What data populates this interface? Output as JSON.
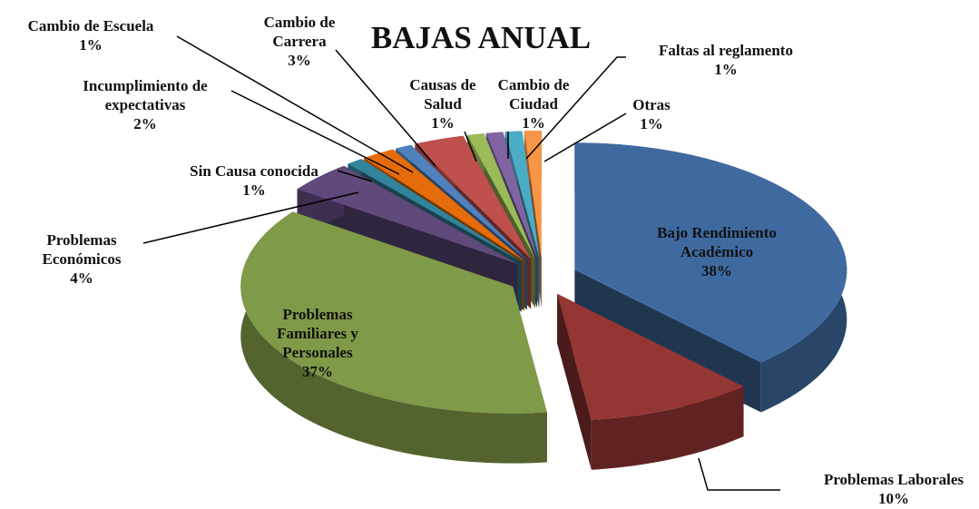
{
  "chart_data": {
    "type": "pie",
    "title": "BAJAS ANUAL",
    "categories": [
      "Bajo Rendimiento Académico",
      "Problemas Laborales",
      "Problemas Familiares y Personales",
      "Problemas Económicos",
      "Sin Causa conocida",
      "Incumplimiento de expectativas",
      "Cambio de Escuela",
      "Cambio de Carrera",
      "Causas de Salud",
      "Cambio de Ciudad",
      "Faltas al reglamento",
      "Otras"
    ],
    "values": [
      38,
      10,
      37,
      4,
      1,
      2,
      1,
      3,
      1,
      1,
      1,
      1
    ],
    "value_labels": [
      "38%",
      "10%",
      "37%",
      "4%",
      "1%",
      "2%",
      "1%",
      "3%",
      "1%",
      "1%",
      "1%",
      "1%"
    ],
    "colors": [
      "#3f6aa0",
      "#943634",
      "#7f9a48",
      "#60497b",
      "#31849b",
      "#e46c0a",
      "#4f81bd",
      "#c0504d",
      "#9bbb59",
      "#8064a2",
      "#4bacc6",
      "#f79646"
    ]
  }
}
